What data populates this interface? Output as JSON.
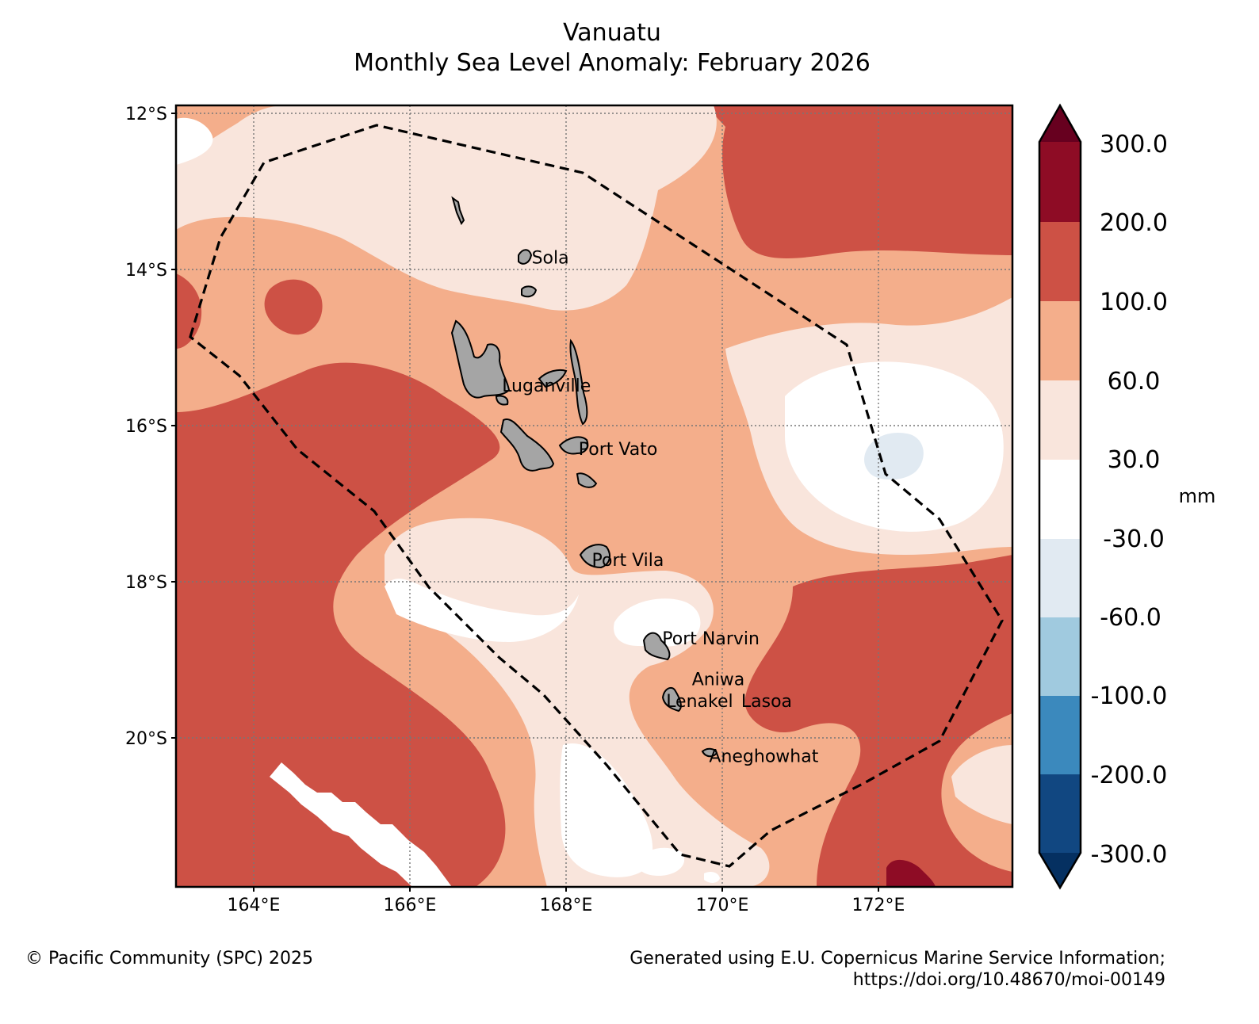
{
  "title": {
    "line1": "Vanuatu",
    "line2": "Monthly Sea Level Anomaly: February 2026"
  },
  "map": {
    "lat_labels": [
      "12°S",
      "14°S",
      "16°S",
      "18°S",
      "20°S"
    ],
    "lon_labels": [
      "164°E",
      "166°E",
      "168°E",
      "170°E",
      "172°E"
    ],
    "extent": {
      "lon_min": 163.0,
      "lon_max": 173.7,
      "lat_min": -21.9,
      "lat_max": -11.95
    },
    "places": [
      {
        "name": "Sola",
        "lon": 167.55,
        "lat": -13.88
      },
      {
        "name": "Luganville",
        "lon": 167.17,
        "lat": -15.51
      },
      {
        "name": "Port Vato",
        "lon": 168.15,
        "lat": -16.32
      },
      {
        "name": "Port Vila",
        "lon": 168.32,
        "lat": -17.73
      },
      {
        "name": "Port Narvin",
        "lon": 169.22,
        "lat": -18.73
      },
      {
        "name": "Aniwa",
        "lon": 169.6,
        "lat": -19.25
      },
      {
        "name": "Lenakel",
        "lon": 169.27,
        "lat": -19.53
      },
      {
        "name": "Lasoa",
        "lon": 170.23,
        "lat": -19.53
      },
      {
        "name": "Aneghowhat",
        "lon": 169.82,
        "lat": -20.23
      }
    ]
  },
  "colorbar": {
    "unit": "mm",
    "labels": [
      "300.0",
      "200.0",
      "100.0",
      "60.0",
      "30.0",
      "-30.0",
      "-60.0",
      "-100.0",
      "-200.0",
      "-300.0"
    ],
    "colors": {
      "over": "#67001f",
      "b200_300": "#8e0c25",
      "b100_200": "#cd5145",
      "b60_100": "#f4ae8b",
      "b30_60": "#f9e5dc",
      "bneg30_30": "#ffffff",
      "bneg60_neg30": "#e1eaf2",
      "bneg100_neg60": "#a0cadf",
      "bneg200_neg100": "#3b89bd",
      "bneg300_neg200": "#114781",
      "under": "#053061"
    }
  },
  "footer": {
    "left": "© Pacific Community (SPC) 2025",
    "right_line1": "Generated using E.U. Copernicus Marine Service Information;",
    "right_line2": "https://doi.org/10.48670/moi-00149"
  }
}
